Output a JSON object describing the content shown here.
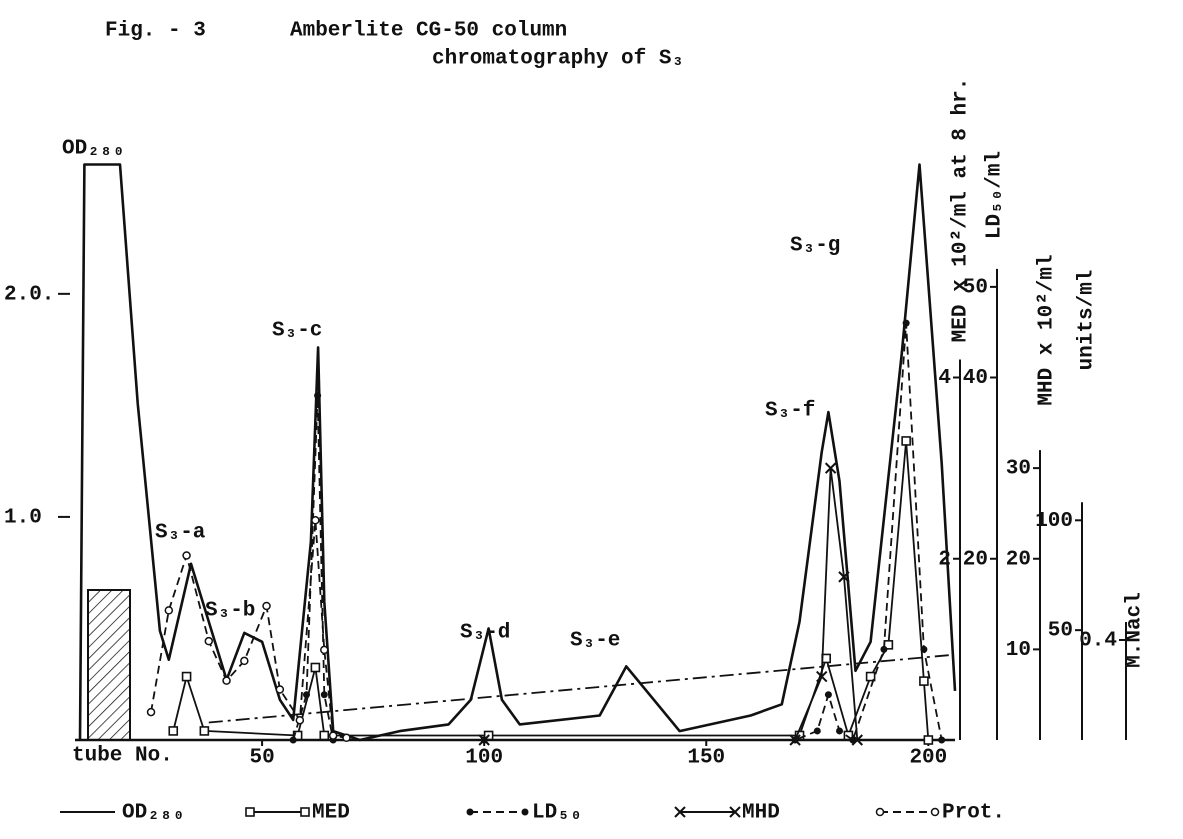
{
  "chart_data": {
    "type": "line",
    "figure_label": "Fig. - 3",
    "title": [
      "Amberlite CG-50 column",
      "chromatography of S₃"
    ],
    "ylabel": "OD₂₈₀",
    "xlabel": "tube No.",
    "xlim": [
      0,
      206
    ],
    "xticks": [
      50,
      100,
      150,
      200
    ],
    "ylim": [
      0,
      2.6
    ],
    "yticks": [
      {
        "value": 1,
        "label": "1.0"
      },
      {
        "value": 2,
        "label": "2.0."
      }
    ],
    "right_axes": [
      {
        "label": "MED x 10²/ml at 8 hr.",
        "ylim": [
          0,
          6.4
        ],
        "yticks": [
          2,
          4
        ]
      },
      {
        "label": "LD₅₀/ml",
        "ylim": [
          0,
          64
        ],
        "yticks": [
          20,
          40,
          50
        ]
      },
      {
        "label": "MHD x 10²/ml",
        "ylim": [
          0,
          64
        ],
        "yticks": [
          10,
          20,
          30
        ]
      },
      {
        "label": "units/ml",
        "ylim": [
          0,
          264
        ],
        "yticks": [
          50,
          100
        ]
      },
      {
        "label": "M.Nacl",
        "ylim": [
          0,
          2.32
        ],
        "yticks": [
          0.4
        ]
      }
    ],
    "annotations": [
      "S₃-a",
      "S₃-b",
      "S₃-c",
      "S₃-d",
      "S₃-e",
      "S₃-f",
      "S₃-g"
    ],
    "series": [
      {
        "name": "OD₂₈₀",
        "color": "#111",
        "line_style": "solid",
        "marker": "none",
        "axis": "y",
        "x": [
          9,
          10,
          18,
          22,
          27,
          29,
          34,
          38,
          42,
          46,
          50,
          54,
          57,
          61,
          62.6,
          64,
          66,
          72,
          81,
          92,
          97,
          101,
          104,
          108,
          126,
          132,
          144,
          160,
          167,
          171,
          176,
          177.5,
          180,
          183.6,
          187,
          194,
          198,
          203,
          206
        ],
        "values": [
          0,
          2.58,
          2.58,
          1.51,
          0.49,
          0.36,
          0.79,
          0.53,
          0.27,
          0.48,
          0.44,
          0.18,
          0.09,
          0.89,
          1.76,
          0.62,
          0.04,
          0,
          0.04,
          0.07,
          0.18,
          0.5,
          0.18,
          0.07,
          0.11,
          0.33,
          0.04,
          0.11,
          0.16,
          0.53,
          1.29,
          1.47,
          1.16,
          0.31,
          0.44,
          1.73,
          2.58,
          1.24,
          0.22
        ]
      },
      {
        "name": "MED",
        "color": "#111",
        "line_style": "solid",
        "marker": "square",
        "axis": 0,
        "x": [
          30,
          33,
          37,
          58,
          62,
          64,
          101,
          171,
          177,
          182,
          187,
          191,
          195,
          199,
          200
        ],
        "values": [
          0.1,
          0.7,
          0.1,
          0.05,
          0.8,
          0.05,
          0.05,
          0.05,
          0.9,
          0.05,
          0.7,
          1.05,
          3.3,
          0.65,
          0
        ]
      },
      {
        "name": "LD₅₀",
        "color": "#111",
        "line_style": "dashed",
        "marker": "dot",
        "axis": 1,
        "x": [
          57,
          60,
          62.5,
          64,
          66,
          100,
          170,
          175,
          177.5,
          180,
          183,
          190,
          195,
          199,
          203
        ],
        "values": [
          0,
          5,
          38,
          5,
          0,
          0,
          0,
          1,
          5,
          1,
          0,
          10,
          46,
          10,
          0
        ]
      },
      {
        "name": "MHD",
        "color": "#111",
        "line_style": "solid",
        "marker": "x",
        "axis": 2,
        "x": [
          100,
          170,
          176,
          178,
          181,
          184
        ],
        "values": [
          0,
          0,
          7,
          30,
          18,
          0
        ]
      },
      {
        "name": "Prot.",
        "color": "#111",
        "line_style": "dashed",
        "marker": "circle",
        "axis": 3,
        "x": [
          25,
          29,
          33,
          38,
          42,
          46,
          51,
          54,
          58.5,
          62,
          64,
          66,
          69
        ],
        "values": [
          12.7,
          59,
          84,
          45,
          27,
          36,
          61,
          23,
          9,
          100,
          41,
          2,
          1
        ]
      },
      {
        "color": "#111",
        "line_style": "dashdot",
        "marker": "none",
        "axis": 4,
        "x": [
          38,
          205
        ],
        "values": [
          0.07,
          0.34
        ]
      }
    ]
  }
}
